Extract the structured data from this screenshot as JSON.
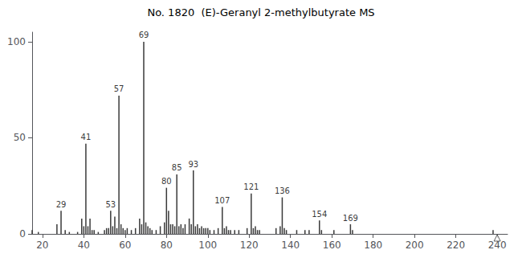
{
  "chart_data": {
    "type": "bar",
    "title": "No. 1820  (E)-Geranyl 2-methylbutyrate MS",
    "x": [
      15,
      18,
      27,
      29,
      31,
      33,
      37,
      39,
      40,
      41,
      42,
      43,
      44,
      45,
      47,
      50,
      51,
      52,
      53,
      54,
      55,
      56,
      57,
      58,
      59,
      60,
      61,
      63,
      65,
      67,
      68,
      69,
      70,
      71,
      72,
      73,
      75,
      77,
      79,
      80,
      81,
      82,
      83,
      84,
      85,
      86,
      87,
      88,
      89,
      91,
      92,
      93,
      94,
      95,
      96,
      97,
      98,
      99,
      100,
      101,
      103,
      105,
      107,
      108,
      109,
      110,
      111,
      113,
      115,
      119,
      121,
      122,
      123,
      124,
      125,
      133,
      135,
      136,
      137,
      138,
      143,
      147,
      149,
      154,
      155,
      161,
      169,
      170,
      238
    ],
    "values": [
      2,
      1,
      5,
      12,
      2,
      1,
      1,
      8,
      4,
      47,
      4,
      8,
      2,
      2,
      1,
      2,
      3,
      3,
      12,
      4,
      9,
      3,
      72,
      5,
      3,
      2,
      3,
      2,
      3,
      8,
      5,
      100,
      6,
      4,
      3,
      2,
      2,
      4,
      6,
      24,
      12,
      5,
      5,
      4,
      31,
      4,
      5,
      3,
      5,
      8,
      5,
      33,
      4,
      5,
      3,
      4,
      3,
      3,
      3,
      2,
      2,
      3,
      14,
      3,
      4,
      2,
      2,
      2,
      2,
      3,
      21,
      3,
      4,
      2,
      2,
      3,
      4,
      19,
      3,
      2,
      2,
      2,
      2,
      7,
      2,
      2,
      5,
      2,
      2
    ],
    "color": "#3a3a3a",
    "annotations": [
      {
        "x": 29,
        "y": 12,
        "text": "29"
      },
      {
        "x": 41,
        "y": 47,
        "text": "41"
      },
      {
        "x": 53,
        "y": 12,
        "text": "53"
      },
      {
        "x": 57,
        "y": 72,
        "text": "57"
      },
      {
        "x": 69,
        "y": 100,
        "text": "69"
      },
      {
        "x": 80,
        "y": 24,
        "text": "80"
      },
      {
        "x": 85,
        "y": 31,
        "text": "85"
      },
      {
        "x": 93,
        "y": 33,
        "text": "93"
      },
      {
        "x": 107,
        "y": 14,
        "text": "107"
      },
      {
        "x": 121,
        "y": 21,
        "text": "121"
      },
      {
        "x": 136,
        "y": 19,
        "text": "136"
      },
      {
        "x": 154,
        "y": 7,
        "text": "154"
      },
      {
        "x": 169,
        "y": 5,
        "text": "169"
      }
    ],
    "marker_x": 240,
    "marker": "triangle",
    "xlim": [
      15,
      245
    ],
    "xticks": [
      20,
      40,
      60,
      80,
      100,
      120,
      140,
      160,
      180,
      200,
      220,
      240
    ],
    "ylim": [
      0,
      105
    ],
    "yticks": [
      0,
      50,
      100
    ],
    "grid": false
  }
}
